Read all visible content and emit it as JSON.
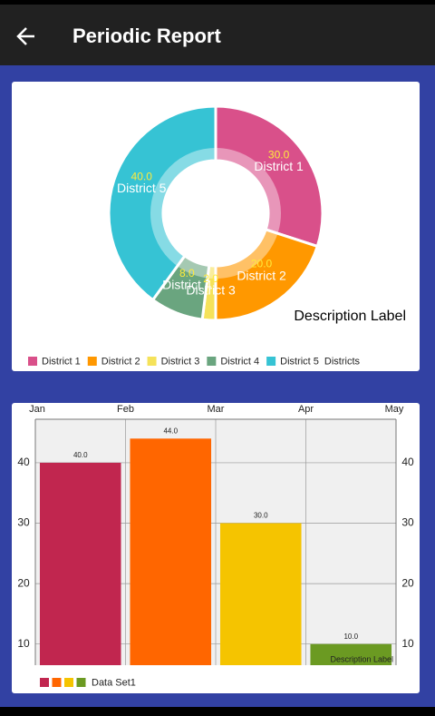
{
  "header": {
    "title": "Periodic Report"
  },
  "chart_data": [
    {
      "type": "pie",
      "categories": [
        "District 1",
        "District 2",
        "District 3",
        "District 4",
        "District 5"
      ],
      "values": [
        30,
        20,
        2,
        8,
        40
      ],
      "value_labels": [
        "30.0",
        "20.0",
        "2.0",
        "8.0",
        "40.0"
      ],
      "colors": [
        "#d9508a",
        "#ff9800",
        "#f5e25a",
        "#6aa57f",
        "#36c3d4"
      ],
      "series_label": "Districts",
      "description": "Description Label",
      "legend": "bottom-left"
    },
    {
      "type": "bar",
      "x": [
        0.5,
        1.5,
        2.5,
        3.5
      ],
      "series": [
        {
          "name": "Data Set1",
          "colors": [
            "#c1264f",
            "#ff6600",
            "#f5c400",
            "#6b9a22"
          ],
          "values": [
            40,
            44,
            30,
            10
          ],
          "value_labels": [
            "40.0",
            "44.0",
            "30.0",
            "10.0"
          ]
        }
      ],
      "xlim": [
        0,
        4
      ],
      "xticks": [
        {
          "value": 0,
          "label": "Jan"
        },
        {
          "value": 1,
          "label": "Feb"
        },
        {
          "value": 2,
          "label": "Mar"
        },
        {
          "value": 3,
          "label": "Apr"
        },
        {
          "value": 4,
          "label": "May"
        }
      ],
      "ylim": [
        6.5,
        47.2
      ],
      "yticks": [
        10,
        20,
        30,
        40
      ],
      "y2lim": [
        6.5,
        47.2
      ],
      "y2ticks": [
        10,
        20,
        30,
        40
      ],
      "grid": true,
      "description": "Description Label",
      "legend": "bottom-left"
    }
  ]
}
